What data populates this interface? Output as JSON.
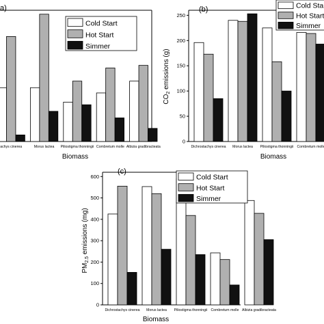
{
  "chart_data": [
    {
      "panel": "a",
      "type": "bar",
      "title": "",
      "xlabel": "Biomass",
      "ylabel": "",
      "ylim": [
        0,
        100
      ],
      "grid": false,
      "legend_position": "top-right",
      "categories": [
        "Dichrostachys cinerea",
        "Morus lactea",
        "Piliostigma thonningii",
        "Combretum molle",
        "Albizia gradibracteata"
      ],
      "category_labels_visible": [
        "achys cinerea",
        "Morus lactea",
        "Piliostigma thonningii",
        "Combretum molle",
        "Albizia gradibracteata"
      ],
      "series": [
        {
          "name": "Cold Start",
          "values": [
            41,
            41,
            30,
            37,
            46
          ]
        },
        {
          "name": "Hot Start",
          "values": [
            80,
            97,
            46,
            56,
            58
          ]
        },
        {
          "name": "Simmer",
          "values": [
            5,
            23,
            28,
            18,
            10
          ]
        }
      ]
    },
    {
      "panel": "b",
      "type": "bar",
      "title": "",
      "xlabel": "Biomass",
      "ylabel": "CO2 emissions (g)",
      "ylim": [
        0,
        260
      ],
      "yticks": [
        "0",
        "50",
        "100",
        "150",
        "200",
        "250"
      ],
      "grid": false,
      "legend_position": "top-right",
      "categories": [
        "Dichrostachys cinerea",
        "Morus lactea",
        "Piliostigma thonningii",
        "Combretum molle"
      ],
      "category_labels_visible": [
        "Dichrostachys cinerea",
        "Morus lactea",
        "Piliostigma thonningii",
        "Combretum molle"
      ],
      "series": [
        {
          "name": "Cold Start",
          "values": [
            196,
            240,
            225,
            216
          ]
        },
        {
          "name": "Hot Start",
          "values": [
            173,
            238,
            158,
            214
          ]
        },
        {
          "name": "Simmer",
          "values": [
            85,
            253,
            100,
            193
          ]
        }
      ]
    },
    {
      "panel": "c",
      "type": "bar",
      "title": "",
      "xlabel": "Biomass",
      "ylabel": "PM2.5 emissions (mg)",
      "ylim": [
        0,
        620
      ],
      "yticks": [
        "0",
        "100",
        "200",
        "300",
        "400",
        "500",
        "600"
      ],
      "grid": false,
      "legend_position": "top-right",
      "categories": [
        "Dichrostachys cinerea",
        "Morus lactea",
        "Piliostigma thonningii",
        "Combretum molle",
        "Albizia gradibracteata"
      ],
      "category_labels_visible": [
        "Dichrostachys cinerea",
        "Morus lactea",
        "Piliostigma thonningii",
        "Combretum molle",
        "Albizia gradibracteata"
      ],
      "series": [
        {
          "name": "Cold Start",
          "values": [
            425,
            553,
            590,
            243,
            488
          ]
        },
        {
          "name": "Hot Start",
          "values": [
            555,
            520,
            418,
            212,
            428
          ]
        },
        {
          "name": "Simmer",
          "values": [
            152,
            260,
            235,
            93,
            305
          ]
        }
      ]
    }
  ],
  "labels": {
    "panel_a": "a)",
    "panel_b": "(b)",
    "panel_c": "(c)",
    "ylabel_b_prefix": "CO",
    "ylabel_b_sub": "2",
    "ylabel_b_suffix": " emissions (g)",
    "ylabel_c_prefix": "PM",
    "ylabel_c_sub": "2.5",
    "ylabel_c_suffix": " emissions (mg)"
  },
  "colors": {
    "Cold Start": "#ffffff",
    "Hot Start": "#b0b0b0",
    "Simmer": "#111111"
  }
}
